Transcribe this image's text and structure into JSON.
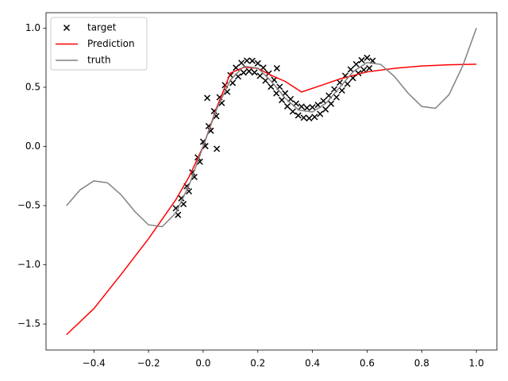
{
  "chart_data": {
    "type": "line",
    "xlim": [
      -0.575,
      1.075
    ],
    "ylim": [
      -1.72,
      1.13
    ],
    "xticks": [
      {
        "value": -0.4,
        "label": "−0.4"
      },
      {
        "value": -0.2,
        "label": "−0.2"
      },
      {
        "value": 0,
        "label": "0.0"
      },
      0.2,
      0.4,
      0.6,
      0.8,
      {
        "value": 1.0,
        "label": "1.0"
      }
    ],
    "yticks": [
      {
        "value": -1.5,
        "label": "−1.5"
      },
      {
        "value": -1.0,
        "label": "−1.0"
      },
      {
        "value": -0.5,
        "label": "−0.5"
      },
      {
        "value": 0,
        "label": "0.0"
      },
      0.5,
      {
        "value": 1.0,
        "label": "1.0"
      }
    ],
    "legend_loc": "upper left",
    "series": [
      {
        "name": "target",
        "type": "scatter",
        "color": "#000000",
        "x": [
          -0.1,
          -0.092,
          -0.08,
          -0.072,
          -0.06,
          -0.052,
          -0.04,
          -0.032,
          -0.02,
          -0.012,
          0,
          0.008,
          0.02,
          0.028,
          0.04,
          0.048,
          0.06,
          0.068,
          0.08,
          0.088,
          0.1,
          0.108,
          0.12,
          0.128,
          0.14,
          0.148,
          0.16,
          0.168,
          0.18,
          0.188,
          0.2,
          0.208,
          0.22,
          0.228,
          0.24,
          0.248,
          0.26,
          0.268,
          0.28,
          0.288,
          0.3,
          0.308,
          0.32,
          0.328,
          0.34,
          0.348,
          0.36,
          0.368,
          0.38,
          0.388,
          0.4,
          0.408,
          0.42,
          0.428,
          0.44,
          0.448,
          0.46,
          0.468,
          0.48,
          0.488,
          0.5,
          0.508,
          0.52,
          0.528,
          0.54,
          0.548,
          0.56,
          0.568,
          0.58,
          0.588,
          0.6,
          0.608,
          0.62,
          0.015,
          0.05,
          0.27
        ],
        "values": [
          -0.522,
          -0.578,
          -0.438,
          -0.487,
          -0.336,
          -0.379,
          -0.219,
          -0.258,
          -0.092,
          -0.129,
          0.04,
          0.003,
          0.172,
          0.133,
          0.299,
          0.256,
          0.416,
          0.367,
          0.518,
          0.462,
          0.602,
          0.537,
          0.665,
          0.591,
          0.706,
          0.624,
          0.725,
          0.635,
          0.723,
          0.625,
          0.702,
          0.597,
          0.665,
          0.556,
          0.617,
          0.505,
          0.562,
          0.449,
          0.504,
          0.392,
          0.449,
          0.339,
          0.4,
          0.295,
          0.362,
          0.262,
          0.337,
          0.243,
          0.326,
          0.238,
          0.331,
          0.249,
          0.351,
          0.275,
          0.385,
          0.313,
          0.43,
          0.361,
          0.483,
          0.416,
          0.54,
          0.473,
          0.597,
          0.528,
          0.65,
          0.578,
          0.695,
          0.619,
          0.729,
          0.647,
          0.749,
          0.661,
          0.724,
          0.41,
          -0.02,
          0.66
        ]
      },
      {
        "name": "Prediction",
        "type": "line",
        "color": "#ff0000",
        "x": [
          -0.5,
          -0.4,
          -0.3,
          -0.2,
          -0.1,
          -0.05,
          0,
          0.05,
          0.1,
          0.15,
          0.2,
          0.25,
          0.3,
          0.36,
          0.45,
          0.5,
          0.6,
          0.7,
          0.8,
          0.9,
          1.0
        ],
        "values": [
          -1.59,
          -1.37,
          -1.08,
          -0.78,
          -0.45,
          -0.25,
          0.0,
          0.33,
          0.62,
          0.67,
          0.66,
          0.6,
          0.55,
          0.46,
          0.53,
          0.57,
          0.63,
          0.66,
          0.68,
          0.69,
          0.695
        ]
      },
      {
        "name": "truth",
        "type": "line",
        "color": "#808080",
        "x": [
          -0.5,
          -0.45,
          -0.4,
          -0.35,
          -0.3,
          -0.25,
          -0.2,
          -0.15,
          -0.1,
          -0.05,
          0,
          0.05,
          0.1,
          0.15,
          0.2,
          0.25,
          0.3,
          0.35,
          0.4,
          0.45,
          0.5,
          0.55,
          0.6,
          0.65,
          0.7,
          0.75,
          0.8,
          0.85,
          0.9,
          0.95,
          1.0
        ],
        "values": [
          -0.5,
          -0.366,
          -0.291,
          -0.307,
          -0.409,
          -0.55,
          -0.662,
          -0.678,
          -0.562,
          -0.319,
          0,
          0.319,
          0.562,
          0.678,
          0.662,
          0.55,
          0.409,
          0.307,
          0.291,
          0.366,
          0.5,
          0.634,
          0.709,
          0.693,
          0.591,
          0.45,
          0.338,
          0.322,
          0.438,
          0.681,
          1.0
        ]
      }
    ]
  }
}
